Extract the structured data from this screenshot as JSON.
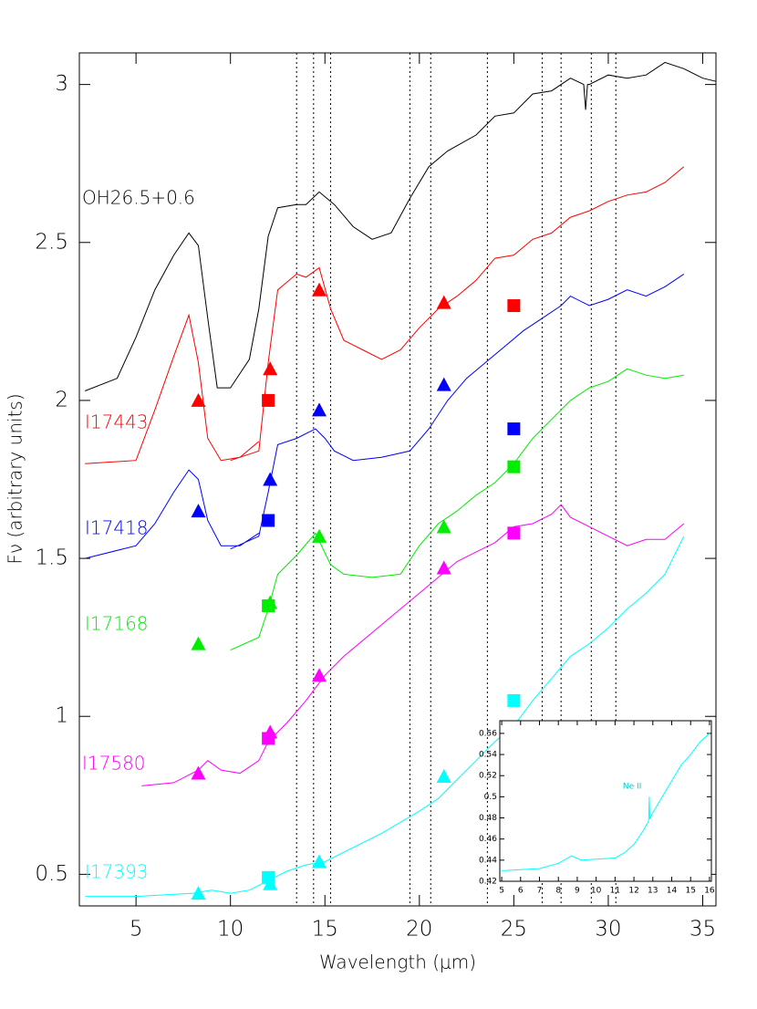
{
  "chart_data": [
    {
      "type": "line",
      "x_label": "Wavelength (μm)",
      "y_label": "Fν (arbitrary units)",
      "xlim": [
        2,
        35.7
      ],
      "ylim": [
        0.4,
        3.1
      ],
      "xticks": [
        5,
        10,
        15,
        20,
        25,
        30,
        35
      ],
      "yticks": [
        0.5,
        1,
        1.5,
        2,
        2.5,
        3
      ],
      "vlines": [
        13.5,
        14.4,
        15.3,
        19.5,
        20.6,
        23.6,
        26.5,
        27.5,
        29.1,
        30.4
      ],
      "series": [
        {
          "name": "OH26.5+0.6",
          "color": "#000000",
          "x": [
            2.3,
            4,
            5,
            6,
            7,
            7.8,
            8.3,
            8.8,
            9.3,
            10,
            11,
            11.5,
            12,
            12.5,
            13.5,
            14,
            14.7,
            15.5,
            16.5,
            17.5,
            18.5,
            19.5,
            20.5,
            21.5,
            23,
            24,
            25,
            26,
            27,
            28,
            28.7,
            28.8,
            28.9,
            29,
            30,
            31,
            32,
            33,
            34,
            35,
            35.7
          ],
          "values": [
            2.03,
            2.07,
            2.2,
            2.35,
            2.46,
            2.53,
            2.49,
            2.26,
            2.04,
            2.04,
            2.13,
            2.29,
            2.52,
            2.61,
            2.62,
            2.62,
            2.66,
            2.62,
            2.55,
            2.51,
            2.53,
            2.64,
            2.74,
            2.79,
            2.84,
            2.9,
            2.91,
            2.97,
            2.98,
            3.02,
            3.0,
            2.92,
            3.0,
            3.0,
            3.03,
            3.02,
            3.03,
            3.07,
            3.05,
            3.02,
            3.01
          ]
        },
        {
          "name": "I17443",
          "color": "#ff0000",
          "x": [
            2.3,
            5,
            6,
            7,
            7.8,
            8.3,
            8.8,
            9.5,
            10.5,
            11.5,
            null,
            10,
            11.5,
            12,
            12.5,
            13.5,
            14,
            14.7,
            15.3,
            16,
            17,
            18,
            19,
            20,
            21,
            22,
            23,
            24,
            25,
            26,
            27,
            28,
            29,
            30,
            31,
            32,
            33,
            34
          ],
          "values": [
            1.8,
            1.81,
            1.97,
            2.14,
            2.27,
            2.12,
            1.88,
            1.81,
            1.82,
            1.87,
            null,
            1.81,
            1.84,
            2.12,
            2.35,
            2.4,
            2.39,
            2.42,
            2.29,
            2.19,
            2.16,
            2.13,
            2.16,
            2.23,
            2.29,
            2.33,
            2.38,
            2.45,
            2.46,
            2.51,
            2.53,
            2.58,
            2.6,
            2.63,
            2.65,
            2.66,
            2.69,
            2.74
          ],
          "triangles": {
            "x": [
              8.3,
              12.1,
              14.7,
              21.3
            ],
            "values": [
              2.0,
              2.1,
              2.35,
              2.31
            ]
          },
          "squares": {
            "x": [
              12.0,
              25.0
            ],
            "values": [
              2.0,
              2.3
            ]
          }
        },
        {
          "name": "I17418",
          "color": "#0000ff",
          "x": [
            2.3,
            5,
            6,
            7,
            7.8,
            8.3,
            8.8,
            9.5,
            10.5,
            11.5,
            null,
            10,
            11.5,
            12,
            12.5,
            13.5,
            14.5,
            15,
            15.5,
            16.5,
            18,
            19.5,
            20.5,
            21.5,
            22.5,
            23.5,
            24.5,
            25.5,
            26.5,
            27.5,
            28,
            29,
            30,
            31,
            32,
            33,
            34
          ],
          "values": [
            1.5,
            1.54,
            1.61,
            1.71,
            1.78,
            1.75,
            1.62,
            1.54,
            1.54,
            1.58,
            null,
            1.53,
            1.57,
            1.71,
            1.86,
            1.88,
            1.91,
            1.88,
            1.84,
            1.81,
            1.82,
            1.84,
            1.91,
            2.0,
            2.07,
            2.12,
            2.17,
            2.22,
            2.26,
            2.3,
            2.33,
            2.3,
            2.32,
            2.35,
            2.33,
            2.36,
            2.4
          ],
          "triangles": {
            "x": [
              8.3,
              12.1,
              14.7,
              21.3
            ],
            "values": [
              1.65,
              1.75,
              1.97,
              2.05
            ]
          },
          "squares": {
            "x": [
              12.0,
              25.0
            ],
            "values": [
              1.62,
              1.91
            ]
          }
        },
        {
          "name": "I17168",
          "color": "#00ee00",
          "x": [
            10,
            11.5,
            12,
            12.5,
            13.5,
            14.5,
            15.3,
            16,
            17.5,
            19,
            20,
            21,
            22,
            23,
            24,
            25,
            26,
            27,
            28,
            29,
            30,
            31,
            32,
            33,
            34
          ],
          "values": [
            1.21,
            1.25,
            1.34,
            1.45,
            1.51,
            1.58,
            1.48,
            1.45,
            1.44,
            1.45,
            1.54,
            1.61,
            1.65,
            1.7,
            1.74,
            1.8,
            1.88,
            1.94,
            2.0,
            2.04,
            2.06,
            2.1,
            2.08,
            2.07,
            2.08
          ],
          "triangles": {
            "x": [
              8.3,
              12.1,
              14.7,
              21.3
            ],
            "values": [
              1.23,
              1.36,
              1.57,
              1.6
            ]
          },
          "squares": {
            "x": [
              12.0,
              25.0
            ],
            "values": [
              1.35,
              1.79
            ]
          }
        },
        {
          "name": "I17580",
          "color": "#ff00ff",
          "x": [
            5.3,
            7,
            8.3,
            8.8,
            9.5,
            10.5,
            11.5,
            12,
            13,
            14,
            15,
            16,
            18,
            20,
            21,
            22,
            23,
            24,
            25,
            26,
            27,
            27.5,
            28,
            29,
            30,
            31,
            32,
            33,
            34
          ],
          "values": [
            0.78,
            0.79,
            0.83,
            0.86,
            0.83,
            0.82,
            0.86,
            0.92,
            0.98,
            1.05,
            1.13,
            1.19,
            1.29,
            1.39,
            1.44,
            1.49,
            1.52,
            1.55,
            1.6,
            1.61,
            1.64,
            1.67,
            1.63,
            1.6,
            1.57,
            1.54,
            1.56,
            1.56,
            1.61
          ],
          "triangles": {
            "x": [
              8.3,
              12.1,
              14.7,
              21.3
            ],
            "values": [
              0.82,
              0.95,
              1.13,
              1.47
            ]
          },
          "squares": {
            "x": [
              12.0,
              25.0
            ],
            "values": [
              0.93,
              1.58
            ]
          }
        },
        {
          "name": "I17393",
          "color": "#00ffff",
          "x": [
            2.3,
            5,
            8,
            9,
            10,
            11,
            12,
            13,
            14,
            15,
            16,
            18,
            20,
            21,
            22,
            23,
            24,
            25,
            26,
            27,
            28,
            29,
            30,
            31,
            32,
            33,
            34
          ],
          "values": [
            0.43,
            0.43,
            0.44,
            0.45,
            0.44,
            0.45,
            0.48,
            0.51,
            0.53,
            0.54,
            0.57,
            0.63,
            0.7,
            0.74,
            0.8,
            0.86,
            0.92,
            0.97,
            1.05,
            1.12,
            1.19,
            1.23,
            1.28,
            1.34,
            1.39,
            1.45,
            1.57
          ],
          "triangles": {
            "x": [
              8.3,
              12.1,
              14.7,
              21.3
            ],
            "values": [
              0.44,
              0.47,
              0.54,
              0.81
            ]
          },
          "squares": {
            "x": [
              12.0,
              25.0
            ],
            "values": [
              0.49,
              1.05
            ]
          }
        }
      ]
    },
    {
      "type": "line",
      "xlim": [
        4.9,
        16.1
      ],
      "ylim": [
        0.42,
        0.572
      ],
      "xticks": [
        5,
        6,
        7,
        8,
        9,
        10,
        11,
        12,
        13,
        14,
        15,
        16
      ],
      "yticks": [
        0.42,
        0.44,
        0.46,
        0.48,
        0.5,
        0.52,
        0.54,
        0.56
      ],
      "annotation": {
        "text": "Ne II",
        "x": 12.4,
        "y": 0.51
      },
      "series": [
        {
          "color": "#00ffff",
          "x": [
            5,
            7,
            8,
            8.7,
            9.2,
            10,
            11,
            11.5,
            12,
            12.5,
            12.78,
            12.81,
            12.84,
            13,
            13.5,
            14,
            14.5,
            15,
            15.5,
            16
          ],
          "values": [
            0.43,
            0.432,
            0.437,
            0.444,
            0.44,
            0.441,
            0.442,
            0.447,
            0.455,
            0.468,
            0.477,
            0.5,
            0.479,
            0.485,
            0.5,
            0.515,
            0.53,
            0.54,
            0.552,
            0.56
          ]
        }
      ]
    }
  ]
}
